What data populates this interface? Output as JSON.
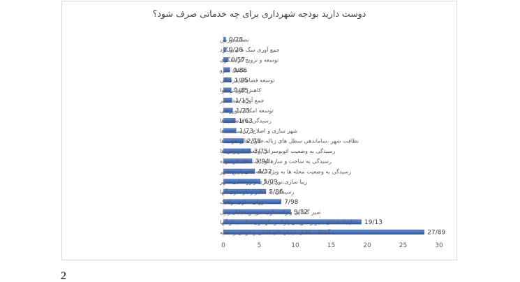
{
  "page_number": "2",
  "chart_data": {
    "type": "bar",
    "orientation": "horizontal",
    "title": "دوست دارید بودجه شهرداری برای چه خدماتی صرف شود؟",
    "xlabel": "",
    "ylabel": "",
    "xlim": [
      0,
      30
    ],
    "ticks": [
      "0",
      "5",
      "10",
      "15",
      "20",
      "25",
      "30"
    ],
    "grid": false,
    "bar_color": "#4472C4",
    "categories": [
      "نصب دوربین",
      "جمع آوری سگ های ولگرد",
      "توسعه و ترویج گردشگری",
      "تکمیل مترو",
      "توسعه فضاهای فرهنگی",
      "کاهش آلودگی هوا",
      "جمع آوری سد معبر",
      "توسعه امکانات ورزشی",
      "رسیدگی به فاضلاب ها",
      "شهر سازی و اصلاح زیر ساخت ها",
      "نظافت شهر ،ساماندهی سطل های زباله،جدول ها و جوب ها",
      "رسیدگی به وضعیت اتوبوسرانی و تعداد اتوبوس ها",
      "رسیدگی به ساخت و سازها و بافت های فرسوده",
      "رسیدگی به وضعیت محله ها به ویژه محله های پایین شهر",
      "زیبا سازی،نور پردازی و روشنایی شهر",
      "رسیدگی به معابر و بازسازی آنها",
      "روان سازی ترافیک",
      "سیر گشایی و راه سازی،تعریض خیابان و پل",
      "ایجاد فضای سبز و تفریحی،پارک و نگهداری مناسب از آنها",
      "آسفالت کامل خیابان های اصلی و فرعی و محله"
    ],
    "values": [
      0.28,
      0.28,
      0.57,
      0.86,
      1.05,
      1.05,
      1.15,
      1.25,
      1.63,
      1.73,
      2.78,
      3.75,
      3.94,
      4.32,
      5.09,
      5.86,
      7.98,
      9.32,
      19.13,
      27.89
    ],
    "data_labels": [
      "0/28",
      "0/28",
      "0/57",
      "0/86",
      "1/05",
      "1/05",
      "1/15",
      "1/25",
      "1/63",
      "1/73",
      "2/78",
      "3/75",
      "3/94",
      "4/32",
      "5/09",
      "5/86",
      "7/98",
      "9/32",
      "19/13",
      "27/89"
    ]
  }
}
